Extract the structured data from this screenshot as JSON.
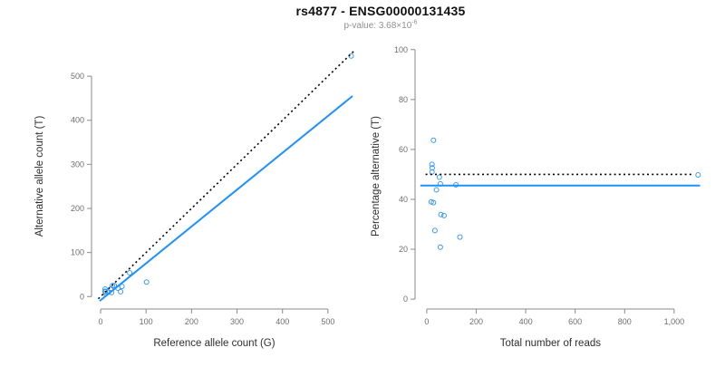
{
  "header": {
    "title": "rs4877 - ENSG00000131435",
    "pvalue_text": "p-value: 3.68×10",
    "pvalue_exponent": "-6"
  },
  "colors": {
    "line_blue": "#1E90FF",
    "point_blue": "#3C97F0",
    "line_black": "#000000",
    "axis": "#8a8a8a",
    "tick_text": "#6e6e6e",
    "label_text": "#2e2e2e",
    "title_text": "#111111",
    "subtitle_text": "#8f8f8f",
    "background": "#ffffff"
  },
  "chart_data": [
    {
      "type": "scatter",
      "title": "",
      "xlabel": "Reference allele count (G)",
      "ylabel": "Alternative allele count (T)",
      "xlim": [
        -16,
        570
      ],
      "ylim": [
        -20,
        566
      ],
      "grid": false,
      "xticks": {
        "values": [
          0,
          100,
          200,
          300,
          400,
          500
        ],
        "labels": [
          "0",
          "100",
          "200",
          "300",
          "400",
          "500"
        ]
      },
      "yticks": {
        "values": [
          0,
          100,
          200,
          300,
          400,
          500
        ],
        "labels": [
          "0",
          "100",
          "200",
          "300",
          "400",
          "500"
        ]
      },
      "points": [
        [
          10,
          17
        ],
        [
          10,
          11
        ],
        [
          10,
          12
        ],
        [
          10,
          11
        ],
        [
          26,
          25
        ],
        [
          30,
          25
        ],
        [
          22,
          17
        ],
        [
          11,
          7
        ],
        [
          17,
          10
        ],
        [
          38,
          19
        ],
        [
          47,
          23
        ],
        [
          24,
          9
        ],
        [
          44,
          11
        ],
        [
          64,
          54
        ],
        [
          101,
          33
        ],
        [
          551,
          546
        ]
      ],
      "lines": [
        {
          "name": "identity-line",
          "style": "dotted",
          "color": "black",
          "coords": [
            [
              -5,
              -5
            ],
            [
              558,
              558
            ]
          ]
        },
        {
          "name": "regression-line",
          "style": "solid",
          "color": "blue",
          "coords": [
            [
              -2,
              -10
            ],
            [
              554,
              455
            ]
          ]
        }
      ]
    },
    {
      "type": "scatter",
      "title": "",
      "xlabel": "Total number of reads",
      "ylabel": "Percentage alternative (T)",
      "xlim": [
        -40,
        1169
      ],
      "ylim": [
        -2.5,
        101
      ],
      "grid": false,
      "xticks": {
        "values": [
          0,
          200,
          400,
          600,
          800,
          1000
        ],
        "labels": [
          "0",
          "200",
          "400",
          "600",
          "800",
          "1,000"
        ]
      },
      "yticks": {
        "values": [
          0,
          20,
          40,
          60,
          80,
          100
        ],
        "labels": [
          "0",
          "20",
          "40",
          "60",
          "80",
          "100"
        ]
      },
      "points": [
        [
          27,
          63.7
        ],
        [
          21,
          54
        ],
        [
          22,
          52.6
        ],
        [
          21,
          51
        ],
        [
          51,
          48.9
        ],
        [
          55,
          46.2
        ],
        [
          39,
          43.8
        ],
        [
          18,
          39
        ],
        [
          27,
          38.7
        ],
        [
          57,
          33.9
        ],
        [
          70,
          33.5
        ],
        [
          33,
          27.5
        ],
        [
          55,
          20.8
        ],
        [
          118,
          45.8
        ],
        [
          134,
          24.9
        ],
        [
          1097,
          49.8
        ]
      ],
      "lines": [
        {
          "name": "expected-percentage-line",
          "style": "dotted",
          "color": "black",
          "coords": [
            [
              -5,
              50
            ],
            [
              1080,
              50
            ]
          ]
        },
        {
          "name": "mean-percentage-line",
          "style": "solid",
          "color": "blue",
          "coords": [
            [
              -26,
              45.5
            ],
            [
              1105,
              45.5
            ]
          ]
        }
      ]
    }
  ]
}
